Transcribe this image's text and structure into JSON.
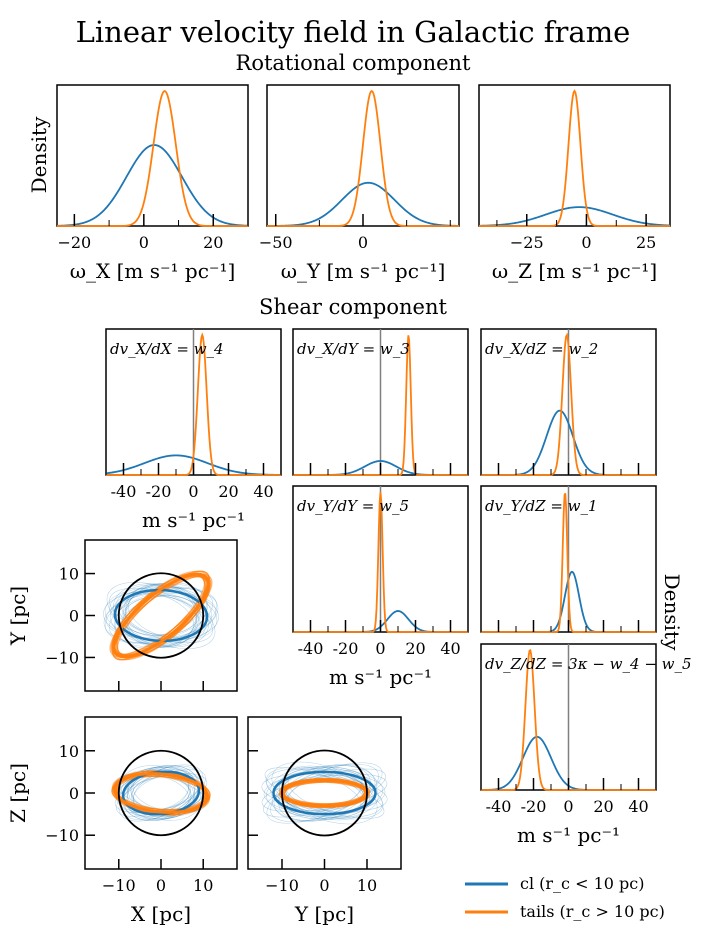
{
  "figure": {
    "title": "Linear velocity field in Galactic frame",
    "rotational_title": "Rotational component",
    "shear_title": "Shear component",
    "density_label": "Density",
    "legend": [
      {
        "label": "cl (r_c < 10 pc)",
        "color": "#1f77b4"
      },
      {
        "label": "tails (r_c > 10 pc)",
        "color": "#ff7f0e"
      }
    ]
  },
  "colors": {
    "cl": "#1f77b4",
    "tails": "#ff7f0e",
    "refline": "#808080",
    "circle": "#000000"
  },
  "chart_data": [
    {
      "id": "omega_x",
      "type": "area",
      "xlabel": "ω_X [m s⁻¹ pc⁻¹]",
      "ylabel": "Density",
      "xlim": [
        -25,
        30
      ],
      "xticks": [
        -20,
        0,
        20
      ],
      "xtick_labels": [
        "−20",
        "0",
        "20"
      ],
      "series": [
        {
          "name": "cl",
          "peak_x": 3,
          "sigma": 8,
          "peak": 0.6
        },
        {
          "name": "tails",
          "peak_x": 6,
          "sigma": 3.2,
          "peak": 1.0
        }
      ]
    },
    {
      "id": "omega_y",
      "type": "area",
      "xlabel": "ω_Y [m s⁻¹ pc⁻¹]",
      "ylabel": "",
      "xlim": [
        -55,
        55
      ],
      "xticks": [
        -50,
        0
      ],
      "xtick_labels": [
        "−50",
        "0"
      ],
      "series": [
        {
          "name": "cl",
          "peak_x": 3,
          "sigma": 15,
          "peak": 0.32
        },
        {
          "name": "tails",
          "peak_x": 5,
          "sigma": 5,
          "peak": 1.0
        }
      ]
    },
    {
      "id": "omega_z",
      "type": "area",
      "xlabel": "ω_Z [m s⁻¹ pc⁻¹]",
      "ylabel": "",
      "xlim": [
        -45,
        35
      ],
      "xticks": [
        -25,
        0,
        25
      ],
      "xtick_labels": [
        "−25",
        "0",
        "25"
      ],
      "series": [
        {
          "name": "cl",
          "peak_x": -3,
          "sigma": 14,
          "peak": 0.14
        },
        {
          "name": "tails",
          "peak_x": -5,
          "sigma": 2.5,
          "peak": 1.0
        }
      ]
    },
    {
      "id": "dvx_dx",
      "type": "area",
      "label": "dv_X/dX = w_4",
      "xlabel": "m s⁻¹ pc⁻¹",
      "xlim": [
        -50,
        50
      ],
      "xticks": [
        -40,
        -20,
        0,
        20,
        40
      ],
      "xtick_labels": [
        "-40",
        "-20",
        "0",
        "20",
        "40"
      ],
      "series": [
        {
          "name": "cl",
          "peak_x": -10,
          "sigma": 18,
          "peak": 0.14
        },
        {
          "name": "tails",
          "peak_x": 5,
          "sigma": 2.5,
          "peak": 1.0
        }
      ]
    },
    {
      "id": "dvx_dy",
      "type": "area",
      "label": "dv_X/dY = w_3",
      "xlim": [
        -50,
        50
      ],
      "xticks": [
        -40,
        -20,
        0,
        20,
        40
      ],
      "xtick_labels": [],
      "series": [
        {
          "name": "cl",
          "peak_x": 0,
          "sigma": 9,
          "peak": 0.1
        },
        {
          "name": "tails",
          "peak_x": 16,
          "sigma": 1.3,
          "peak": 1.0
        }
      ]
    },
    {
      "id": "dvx_dz",
      "type": "area",
      "label": "dv_X/dZ = w_2",
      "xlim": [
        -50,
        50
      ],
      "xticks": [
        -40,
        -20,
        0,
        20,
        40
      ],
      "xtick_labels": [],
      "series": [
        {
          "name": "cl",
          "peak_x": -5,
          "sigma": 7.5,
          "peak": 0.46
        },
        {
          "name": "tails",
          "peak_x": -1,
          "sigma": 2.5,
          "peak": 1.0
        }
      ]
    },
    {
      "id": "dvy_dy",
      "type": "area",
      "label": "dv_Y/dY = w_5",
      "xlabel": "m s⁻¹ pc⁻¹",
      "xlim": [
        -50,
        50
      ],
      "xticks": [
        -40,
        -20,
        0,
        20,
        40
      ],
      "xtick_labels": [
        "-40",
        "-20",
        "0",
        "20",
        "40"
      ],
      "series": [
        {
          "name": "cl",
          "peak_x": 10,
          "sigma": 6,
          "peak": 0.15
        },
        {
          "name": "tails",
          "peak_x": 0,
          "sigma": 1.2,
          "peak": 1.0
        }
      ]
    },
    {
      "id": "dvy_dz",
      "type": "area",
      "label": "dv_Y/dZ = w_1",
      "xlim": [
        -50,
        50
      ],
      "xticks": [
        -40,
        -20,
        0,
        20,
        40
      ],
      "xtick_labels": [],
      "series": [
        {
          "name": "cl",
          "peak_x": 2,
          "sigma": 4,
          "peak": 0.43
        },
        {
          "name": "tails",
          "peak_x": -2,
          "sigma": 1.3,
          "peak": 1.0
        }
      ]
    },
    {
      "id": "dvz_dz",
      "type": "area",
      "label": "dv_Z/dZ = 3κ − w_4 − w_5",
      "xlabel": "m s⁻¹ pc⁻¹",
      "xlim": [
        -50,
        50
      ],
      "xticks": [
        -40,
        -20,
        0,
        20,
        40
      ],
      "xtick_labels": [
        "-40",
        "-20",
        "0",
        "20",
        "40"
      ],
      "series": [
        {
          "name": "cl",
          "peak_x": -18,
          "sigma": 8,
          "peak": 0.38
        },
        {
          "name": "tails",
          "peak_x": -22,
          "sigma": 2.6,
          "peak": 1.0
        }
      ]
    },
    {
      "id": "xy_proj",
      "type": "scatter",
      "xlabel": "",
      "ylabel": "Y [pc]",
      "xlim": [
        -18,
        18
      ],
      "ylim": [
        -18,
        18
      ],
      "yticks": [
        -10,
        0,
        10
      ],
      "ytick_labels": [
        "−10",
        "0",
        "10"
      ],
      "circle_r": 10,
      "ellipses": [
        {
          "name": "cl",
          "a": 6,
          "b": 11,
          "angle_deg": 88
        },
        {
          "name": "tails",
          "a": 14,
          "b": 5,
          "angle_deg": 40
        }
      ]
    },
    {
      "id": "xz_proj",
      "type": "scatter",
      "xlabel": "X [pc]",
      "ylabel": "Z [pc]",
      "xlim": [
        -18,
        18
      ],
      "ylim": [
        -18,
        18
      ],
      "xticks": [
        -10,
        0,
        10
      ],
      "xtick_labels": [
        "−10",
        "0",
        "10"
      ],
      "yticks": [
        -10,
        0,
        10
      ],
      "ytick_labels": [
        "−10",
        "0",
        "10"
      ],
      "circle_r": 10,
      "ellipses": [
        {
          "name": "cl",
          "a": 9,
          "b": 5,
          "angle_deg": 5
        },
        {
          "name": "tails",
          "a": 11,
          "b": 4.5,
          "angle_deg": -5
        }
      ]
    },
    {
      "id": "yz_proj",
      "type": "scatter",
      "xlabel": "Y [pc]",
      "ylabel": "",
      "xlim": [
        -18,
        18
      ],
      "ylim": [
        -18,
        18
      ],
      "xticks": [
        -10,
        0,
        10
      ],
      "xtick_labels": [
        "−10",
        "0",
        "10"
      ],
      "circle_r": 10,
      "ellipses": [
        {
          "name": "cl",
          "a": 12,
          "b": 5,
          "angle_deg": 0
        },
        {
          "name": "tails",
          "a": 10,
          "b": 3,
          "angle_deg": 0
        }
      ]
    }
  ]
}
